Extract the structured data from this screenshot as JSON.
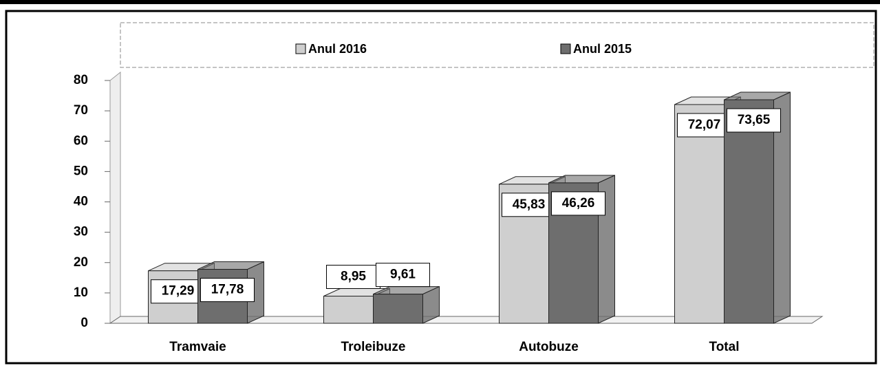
{
  "chart_data": {
    "type": "bar",
    "categories": [
      "Tramvaie",
      "Troleibuze",
      "Autobuze",
      "Total"
    ],
    "series": [
      {
        "name": "Anul 2016",
        "color": "#cfcfcf",
        "values": [
          17.29,
          8.95,
          45.83,
          72.07
        ],
        "value_labels": [
          "17,29",
          "8,95",
          "45,83",
          "72,07"
        ]
      },
      {
        "name": "Anul 2015",
        "color": "#6e6e6e",
        "values": [
          17.78,
          9.61,
          46.26,
          73.65
        ],
        "value_labels": [
          "17,78",
          "9,61",
          "46,26",
          "73,65"
        ]
      }
    ],
    "ylim": [
      0,
      80
    ],
    "yticks": [
      0,
      10,
      20,
      30,
      40,
      50,
      60,
      70,
      80
    ],
    "grid": false,
    "legend": "top"
  }
}
